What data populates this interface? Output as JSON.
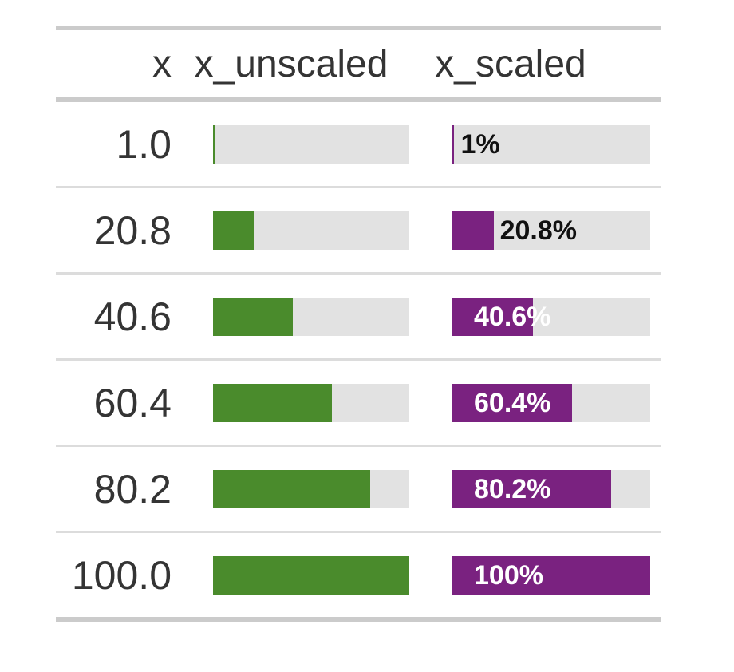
{
  "table": {
    "columns": [
      {
        "label": "x"
      },
      {
        "label": "x_unscaled"
      },
      {
        "label": "x_scaled"
      }
    ],
    "rows": [
      {
        "x": "1.0",
        "pct": 1,
        "scaled_label": "1%",
        "label_placement": "outside"
      },
      {
        "x": "20.8",
        "pct": 20.8,
        "scaled_label": "20.8%",
        "label_placement": "outside"
      },
      {
        "x": "40.6",
        "pct": 40.6,
        "scaled_label": "40.6%",
        "label_placement": "inside"
      },
      {
        "x": "60.4",
        "pct": 60.4,
        "scaled_label": "60.4%",
        "label_placement": "inside"
      },
      {
        "x": "80.2",
        "pct": 80.2,
        "scaled_label": "80.2%",
        "label_placement": "inside"
      },
      {
        "x": "100.0",
        "pct": 100,
        "scaled_label": "100%",
        "label_placement": "inside"
      }
    ],
    "colors": {
      "unscaled_fill": "#4a8b2c",
      "scaled_fill": "#7a2280",
      "bar_background": "#e2e2e2",
      "rule_heavy": "#cbcbcb",
      "rule_light": "#dcdcdc",
      "text_dark": "#343434",
      "label_outside": "#111111",
      "label_inside": "#ffffff"
    }
  },
  "chart_data": {
    "type": "table",
    "title": "",
    "columns": [
      "x",
      "x_unscaled",
      "x_scaled"
    ],
    "x_values": [
      1.0,
      20.8,
      40.6,
      60.4,
      80.2,
      100.0
    ],
    "series": [
      {
        "name": "x_unscaled",
        "values": [
          1,
          20.8,
          40.6,
          60.4,
          80.2,
          100
        ],
        "color": "#4a8b2c",
        "labels_shown": false
      },
      {
        "name": "x_scaled",
        "values": [
          1,
          20.8,
          40.6,
          60.4,
          80.2,
          100
        ],
        "color": "#7a2280",
        "labels_shown": true,
        "labels": [
          "1%",
          "20.8%",
          "40.6%",
          "60.4%",
          "80.2%",
          "100%"
        ]
      }
    ],
    "bar_range": [
      0,
      100
    ],
    "bar_background": "#e2e2e2",
    "grid": false,
    "legend": false
  }
}
